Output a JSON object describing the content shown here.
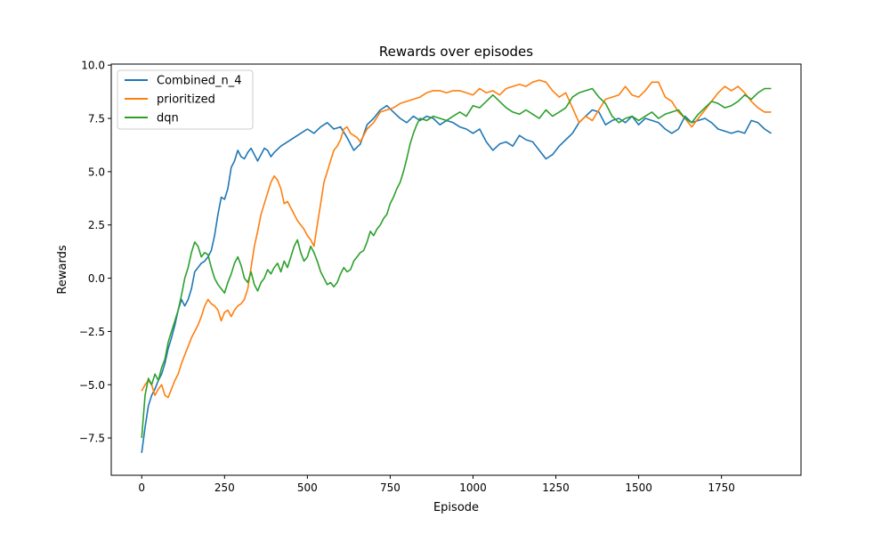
{
  "chart_data": {
    "type": "line",
    "title": "Rewards over episodes",
    "xlabel": "Episode",
    "ylabel": "Rewards",
    "xlim": [
      -92,
      1990
    ],
    "ylim": [
      -9.25,
      10.05
    ],
    "xticks": [
      0,
      250,
      500,
      750,
      1000,
      1250,
      1500,
      1750
    ],
    "xtick_labels": [
      "0",
      "250",
      "500",
      "750",
      "1000",
      "1250",
      "1500",
      "1750"
    ],
    "yticks": [
      -7.5,
      -5.0,
      -2.5,
      0.0,
      2.5,
      5.0,
      7.5,
      10.0
    ],
    "ytick_labels": [
      "−7.5",
      "−5.0",
      "−2.5",
      "0.0",
      "2.5",
      "5.0",
      "7.5",
      "10.0"
    ],
    "grid": false,
    "legend_position": "upper-left",
    "series": [
      {
        "name": "Combined_n_4",
        "color": "#1f77b4",
        "x": [
          0,
          10,
          20,
          30,
          40,
          50,
          60,
          70,
          80,
          90,
          100,
          110,
          120,
          130,
          140,
          150,
          160,
          170,
          180,
          190,
          200,
          210,
          220,
          230,
          240,
          250,
          260,
          270,
          280,
          290,
          300,
          310,
          320,
          330,
          340,
          350,
          360,
          370,
          380,
          390,
          400,
          420,
          440,
          460,
          480,
          500,
          520,
          540,
          560,
          580,
          600,
          620,
          640,
          660,
          680,
          700,
          720,
          740,
          760,
          780,
          800,
          820,
          840,
          860,
          880,
          900,
          920,
          940,
          960,
          980,
          1000,
          1020,
          1040,
          1060,
          1080,
          1100,
          1120,
          1140,
          1160,
          1180,
          1200,
          1220,
          1240,
          1260,
          1280,
          1300,
          1320,
          1340,
          1360,
          1380,
          1400,
          1420,
          1440,
          1460,
          1480,
          1500,
          1520,
          1540,
          1560,
          1580,
          1600,
          1620,
          1640,
          1660,
          1680,
          1700,
          1720,
          1740,
          1760,
          1780,
          1800,
          1820,
          1840,
          1860,
          1880,
          1900
        ],
        "values": [
          -8.2,
          -7.0,
          -6.0,
          -5.5,
          -5.2,
          -4.8,
          -4.5,
          -4.0,
          -3.3,
          -2.8,
          -2.2,
          -1.5,
          -1.0,
          -1.3,
          -1.0,
          -0.5,
          0.3,
          0.5,
          0.7,
          0.8,
          1.0,
          1.3,
          2.0,
          3.0,
          3.8,
          3.7,
          4.2,
          5.2,
          5.5,
          6.0,
          5.7,
          5.6,
          5.9,
          6.1,
          5.8,
          5.5,
          5.8,
          6.1,
          6.0,
          5.7,
          5.9,
          6.2,
          6.4,
          6.6,
          6.8,
          7.0,
          6.8,
          7.1,
          7.3,
          7.0,
          7.1,
          6.6,
          6.0,
          6.3,
          7.2,
          7.5,
          7.9,
          8.1,
          7.8,
          7.5,
          7.3,
          7.6,
          7.4,
          7.6,
          7.5,
          7.2,
          7.4,
          7.3,
          7.1,
          7.0,
          6.8,
          7.0,
          6.4,
          6.0,
          6.3,
          6.4,
          6.2,
          6.7,
          6.5,
          6.4,
          6.0,
          5.6,
          5.8,
          6.2,
          6.5,
          6.8,
          7.3,
          7.6,
          7.9,
          7.8,
          7.2,
          7.4,
          7.5,
          7.3,
          7.6,
          7.2,
          7.5,
          7.4,
          7.3,
          7.0,
          6.8,
          7.0,
          7.6,
          7.3,
          7.4,
          7.5,
          7.3,
          7.0,
          6.9,
          6.8,
          6.9,
          6.8,
          7.4,
          7.3,
          7.0,
          6.8
        ]
      },
      {
        "name": "prioritized",
        "color": "#ff7f0e",
        "x": [
          0,
          10,
          20,
          30,
          40,
          50,
          60,
          70,
          80,
          90,
          100,
          110,
          120,
          130,
          140,
          150,
          160,
          170,
          180,
          190,
          200,
          210,
          220,
          230,
          240,
          250,
          260,
          270,
          280,
          290,
          300,
          310,
          320,
          330,
          340,
          350,
          360,
          370,
          380,
          390,
          400,
          410,
          420,
          430,
          440,
          450,
          460,
          470,
          480,
          490,
          500,
          510,
          520,
          530,
          540,
          550,
          560,
          570,
          580,
          590,
          600,
          610,
          620,
          630,
          640,
          650,
          660,
          680,
          700,
          720,
          740,
          760,
          780,
          800,
          820,
          840,
          860,
          880,
          900,
          920,
          940,
          960,
          980,
          1000,
          1020,
          1040,
          1060,
          1080,
          1100,
          1120,
          1140,
          1160,
          1180,
          1200,
          1220,
          1240,
          1260,
          1280,
          1300,
          1320,
          1340,
          1360,
          1380,
          1400,
          1420,
          1440,
          1460,
          1480,
          1500,
          1520,
          1540,
          1560,
          1580,
          1600,
          1620,
          1640,
          1660,
          1680,
          1700,
          1720,
          1740,
          1760,
          1780,
          1800,
          1820,
          1840,
          1860,
          1880,
          1900
        ],
        "values": [
          -5.3,
          -5.0,
          -4.8,
          -5.0,
          -5.5,
          -5.2,
          -5.0,
          -5.5,
          -5.6,
          -5.2,
          -4.8,
          -4.5,
          -4.0,
          -3.6,
          -3.2,
          -2.8,
          -2.5,
          -2.2,
          -1.8,
          -1.3,
          -1.0,
          -1.2,
          -1.3,
          -1.5,
          -2.0,
          -1.6,
          -1.5,
          -1.8,
          -1.5,
          -1.3,
          -1.2,
          -1.0,
          -0.5,
          0.5,
          1.5,
          2.2,
          3.0,
          3.5,
          4.0,
          4.5,
          4.8,
          4.6,
          4.2,
          3.5,
          3.6,
          3.3,
          3.0,
          2.7,
          2.5,
          2.3,
          2.0,
          1.8,
          1.5,
          2.5,
          3.5,
          4.5,
          5.0,
          5.5,
          6.0,
          6.2,
          6.5,
          7.0,
          7.1,
          6.8,
          6.7,
          6.6,
          6.4,
          7.0,
          7.3,
          7.8,
          7.9,
          8.0,
          8.2,
          8.3,
          8.4,
          8.5,
          8.7,
          8.8,
          8.8,
          8.7,
          8.8,
          8.8,
          8.7,
          8.6,
          8.9,
          8.7,
          8.8,
          8.6,
          8.9,
          9.0,
          9.1,
          9.0,
          9.2,
          9.3,
          9.2,
          8.8,
          8.5,
          8.7,
          8.0,
          7.3,
          7.6,
          7.4,
          7.9,
          8.4,
          8.5,
          8.6,
          9.0,
          8.6,
          8.5,
          8.8,
          9.2,
          9.2,
          8.5,
          8.3,
          7.8,
          7.5,
          7.1,
          7.5,
          7.9,
          8.3,
          8.7,
          9.0,
          8.8,
          9.0,
          8.7,
          8.3,
          8.0,
          7.8,
          7.8
        ]
      },
      {
        "name": "dqn",
        "color": "#2ca02c",
        "x": [
          0,
          10,
          20,
          30,
          40,
          50,
          60,
          70,
          80,
          90,
          100,
          110,
          120,
          130,
          140,
          150,
          160,
          170,
          180,
          190,
          200,
          210,
          220,
          230,
          240,
          250,
          260,
          270,
          280,
          290,
          300,
          310,
          320,
          330,
          340,
          350,
          360,
          370,
          380,
          390,
          400,
          410,
          420,
          430,
          440,
          450,
          460,
          470,
          480,
          490,
          500,
          510,
          520,
          530,
          540,
          550,
          560,
          570,
          580,
          590,
          600,
          610,
          620,
          630,
          640,
          650,
          660,
          670,
          680,
          690,
          700,
          710,
          720,
          730,
          740,
          750,
          760,
          770,
          780,
          790,
          800,
          810,
          820,
          830,
          840,
          860,
          880,
          900,
          920,
          940,
          960,
          980,
          1000,
          1020,
          1040,
          1060,
          1080,
          1100,
          1120,
          1140,
          1160,
          1180,
          1200,
          1220,
          1240,
          1260,
          1280,
          1300,
          1320,
          1340,
          1360,
          1380,
          1400,
          1420,
          1440,
          1460,
          1480,
          1500,
          1520,
          1540,
          1560,
          1580,
          1600,
          1620,
          1640,
          1660,
          1680,
          1700,
          1720,
          1740,
          1760,
          1780,
          1800,
          1820,
          1840,
          1860,
          1880,
          1900
        ],
        "values": [
          -7.5,
          -5.5,
          -4.7,
          -5.0,
          -4.5,
          -4.8,
          -4.2,
          -3.8,
          -3.0,
          -2.5,
          -2.0,
          -1.5,
          -0.8,
          0.0,
          0.5,
          1.2,
          1.7,
          1.5,
          1.0,
          1.2,
          1.1,
          0.5,
          0.0,
          -0.3,
          -0.5,
          -0.7,
          -0.2,
          0.2,
          0.7,
          1.0,
          0.6,
          0.0,
          -0.2,
          0.3,
          -0.3,
          -0.6,
          -0.2,
          0.0,
          0.4,
          0.2,
          0.5,
          0.7,
          0.3,
          0.8,
          0.5,
          1.0,
          1.5,
          1.8,
          1.2,
          0.8,
          1.0,
          1.5,
          1.2,
          0.8,
          0.3,
          0.0,
          -0.3,
          -0.2,
          -0.4,
          -0.2,
          0.2,
          0.5,
          0.3,
          0.4,
          0.8,
          1.0,
          1.2,
          1.3,
          1.7,
          2.2,
          2.0,
          2.3,
          2.5,
          2.8,
          3.0,
          3.5,
          3.8,
          4.2,
          4.5,
          5.0,
          5.6,
          6.3,
          6.8,
          7.2,
          7.5,
          7.4,
          7.6,
          7.5,
          7.4,
          7.6,
          7.8,
          7.6,
          8.1,
          8.0,
          8.3,
          8.6,
          8.3,
          8.0,
          7.8,
          7.7,
          7.9,
          7.7,
          7.5,
          7.9,
          7.6,
          7.8,
          8.0,
          8.5,
          8.7,
          8.8,
          8.9,
          8.5,
          8.2,
          7.6,
          7.3,
          7.5,
          7.6,
          7.4,
          7.6,
          7.8,
          7.5,
          7.7,
          7.8,
          7.9,
          7.5,
          7.3,
          7.7,
          8.0,
          8.3,
          8.2,
          8.0,
          8.1,
          8.3,
          8.6,
          8.4,
          8.7,
          8.9,
          8.9
        ]
      }
    ]
  }
}
